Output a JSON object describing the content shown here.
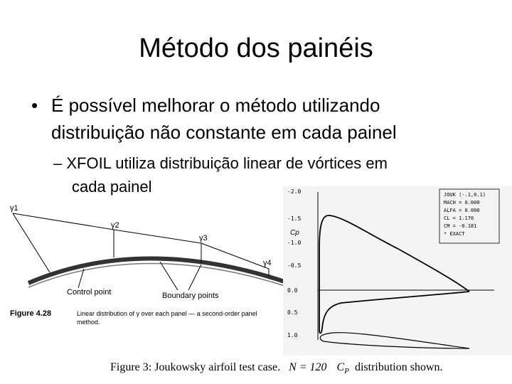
{
  "slide": {
    "title": "Método dos painéis",
    "bullets": [
      {
        "lines": [
          "É possível melhorar o método utilizando",
          "distribuição não constante em cada painel"
        ]
      },
      {
        "lines": [
          "– XFOIL utiliza distribuição linear de vórtices em",
          "cada painel"
        ]
      }
    ],
    "left_figure": {
      "gamma_labels": [
        "γ1",
        "γ2",
        "γ3",
        "γ4"
      ],
      "control_point": "Control point",
      "boundary_points": "Boundary points",
      "figure_number": "Figure 4.28",
      "caption_lines": [
        "Linear distribution of γ over each panel — a second-order panel",
        "method."
      ]
    },
    "right_figure": {
      "axis_label": "Cp",
      "tick_labels": [
        "-2.0",
        "-1.5",
        "-1.0",
        "-0.5",
        "0.0",
        "0.5",
        "1.0"
      ],
      "legend_lines": [
        "JOUK (-.1,0.1)",
        "MACH = 0.000",
        "ALFA = 0.000",
        "CL = 1.170",
        "CM = -0.181",
        "* EXACT"
      ],
      "caption_parts": [
        "Figure 3:  Joukowsky airfoil test case.",
        "N = 120",
        "C",
        "P",
        "distribution shown."
      ]
    }
  }
}
